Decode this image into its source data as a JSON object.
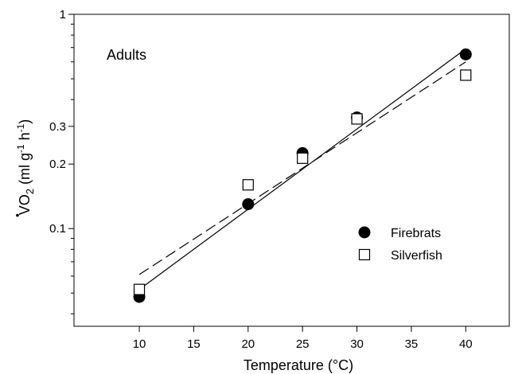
{
  "chart_data": {
    "type": "scatter",
    "annotation": "Adults",
    "xlabel": "Temperature (°C)",
    "ylabel_main": "VO",
    "ylabel_sub": "2",
    "ylabel_units_open": " (ml g",
    "ylabel_sup1": "-1",
    "ylabel_units_mid": " h",
    "ylabel_sup2": "-1",
    "ylabel_units_close": ")",
    "xlim": [
      4,
      44
    ],
    "ylim": [
      0.035,
      1
    ],
    "yscale": "log",
    "xticks": [
      10,
      15,
      20,
      25,
      30,
      35,
      40
    ],
    "xtick_labels": [
      "10",
      "15",
      "20",
      "25",
      "30",
      "35",
      "40"
    ],
    "yticks": [
      0.1,
      0.2,
      0.3,
      1
    ],
    "ytick_labels": [
      "0.1",
      "0.2",
      "0.3",
      "1"
    ],
    "y_minor_ticks": [
      0.04,
      0.05,
      0.06,
      0.07,
      0.08,
      0.09,
      0.4,
      0.5,
      0.6,
      0.7,
      0.8,
      0.9
    ],
    "grid": false,
    "legend_position": "middle-right",
    "series": [
      {
        "name": "Firebrats",
        "marker": "filled-circle",
        "color": "#000000",
        "points": [
          [
            10,
            0.048
          ],
          [
            20,
            0.13
          ],
          [
            25,
            0.225
          ],
          [
            30,
            0.33
          ],
          [
            40,
            0.65
          ]
        ],
        "fit_line": {
          "style": "solid",
          "x": [
            10,
            40
          ],
          "y": [
            0.052,
            0.69
          ]
        }
      },
      {
        "name": "Silverfish",
        "marker": "open-square",
        "color": "#000000",
        "points": [
          [
            10,
            0.052
          ],
          [
            20,
            0.16
          ],
          [
            25,
            0.213
          ],
          [
            30,
            0.325
          ],
          [
            40,
            0.52
          ]
        ],
        "fit_line": {
          "style": "dashed",
          "x": [
            10,
            40
          ],
          "y": [
            0.061,
            0.6
          ]
        }
      }
    ]
  }
}
